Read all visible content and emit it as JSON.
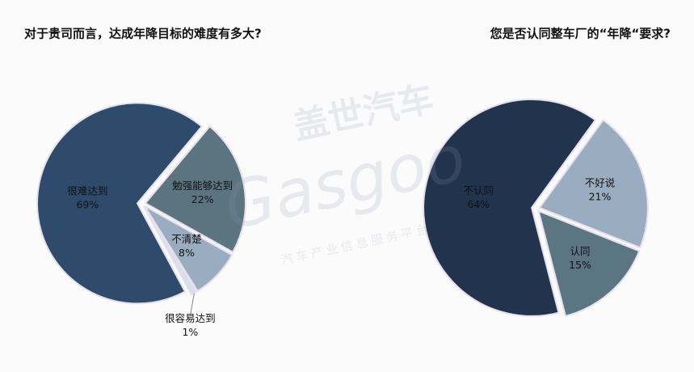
{
  "chart_data": [
    {
      "type": "pie",
      "title": "对于贵司而言，达成年降目标的难度有多大?",
      "categories": [
        "很难达到",
        "勉强能够达到",
        "不清楚",
        "很容易达到"
      ],
      "values": [
        69,
        22,
        8,
        1
      ],
      "value_labels": [
        "69%",
        "22%",
        "8%",
        "1%"
      ],
      "colors": [
        "#2f4b6b",
        "#5b7480",
        "#9aacbf",
        "#d9dee8"
      ]
    },
    {
      "type": "pie",
      "title": "您是否认同整车厂的“年降“要求?",
      "categories": [
        "不认同",
        "不好说",
        "认同"
      ],
      "values": [
        64,
        21,
        15
      ],
      "value_labels": [
        "64%",
        "21%",
        "15%"
      ],
      "colors": [
        "#22334d",
        "#9aacbf",
        "#5b7583"
      ]
    }
  ],
  "watermark": {
    "brand": "盖世汽车",
    "logo": "Gasgoo",
    "slogan": "汽车产业信息服务平台"
  }
}
